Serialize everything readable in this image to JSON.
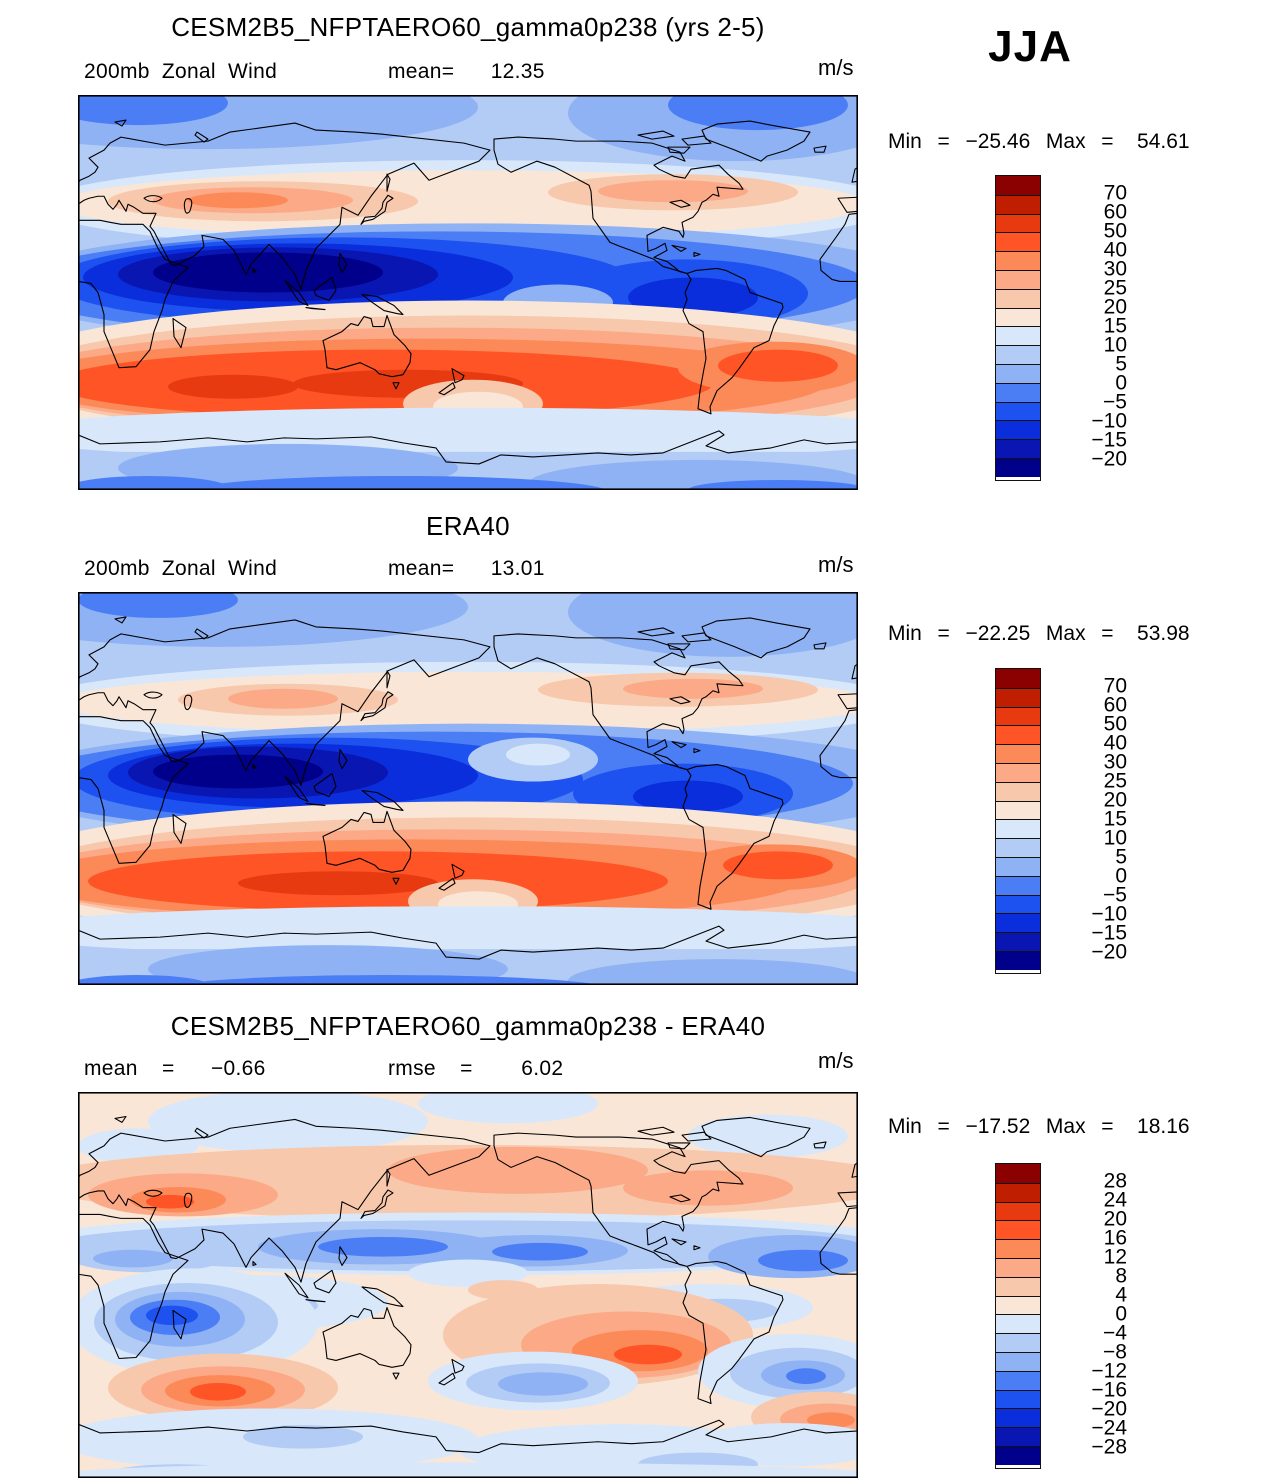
{
  "header": {
    "season": "JJA"
  },
  "palette": [
    "#8B0000",
    "#C01E00",
    "#E83A10",
    "#FF5426",
    "#FC8A58",
    "#FCA987",
    "#F8C8AC",
    "#FAE6D7",
    "#D8E8FA",
    "#B2CCF6",
    "#8FB2F4",
    "#4B7EF5",
    "#1E52F0",
    "#0A2EDC",
    "#0A16B2",
    "#00008B"
  ],
  "panels": [
    {
      "title": "CESM2B5_NFPTAERO60_gamma0p238 (yrs 2-5)",
      "left_label": "200mb Zonal Wind",
      "stat_label": "mean=   12.35",
      "units": "m/s",
      "minmax": "Min  =  −25.46  Max  =   54.61",
      "colorbar_ticks": [
        "70",
        "60",
        "50",
        "40",
        "30",
        "25",
        "20",
        "15",
        "10",
        "5",
        "0",
        "−5",
        "−10",
        "−15",
        "−20"
      ]
    },
    {
      "title": "ERA40",
      "left_label": "200mb Zonal Wind",
      "stat_label": "mean=   13.01",
      "units": "m/s",
      "minmax": "Min  =  −22.25  Max  =   53.98",
      "colorbar_ticks": [
        "70",
        "60",
        "50",
        "40",
        "30",
        "25",
        "20",
        "15",
        "10",
        "5",
        "0",
        "−5",
        "−10",
        "−15",
        "−20"
      ]
    },
    {
      "title": "CESM2B5_NFPTAERO60_gamma0p238 - ERA40",
      "left_label": "mean  =   −0.66",
      "stat_label": "rmse  =    6.02",
      "units": "m/s",
      "minmax": "Min  =  −17.52  Max  =   18.16",
      "colorbar_ticks": [
        "28",
        "24",
        "20",
        "16",
        "12",
        "8",
        "4",
        "0",
        "−4",
        "−8",
        "−12",
        "−16",
        "−20",
        "−24",
        "−28"
      ]
    }
  ],
  "chart_data": [
    {
      "type": "heatmap",
      "title": "CESM2B5_NFPTAERO60_gamma0p238 (yrs 2-5)",
      "variable": "200mb Zonal Wind",
      "season": "JJA",
      "units": "m/s",
      "mean": 12.35,
      "min": -25.46,
      "max": 54.61,
      "levels": [
        -20,
        -15,
        -10,
        -5,
        0,
        5,
        10,
        15,
        20,
        25,
        30,
        40,
        50,
        60,
        70
      ],
      "projection": "global cylindrical equidistant, lon 0-360E (Greenwich at left edge), lat 90N-90S",
      "legend_position": "right vertical colorbar, dark red (high) to navy (low)",
      "features": [
        "easterly jet core below -20 m/s over Indian Ocean / South Asia (0-20N, 40-110E)",
        "northern-hemisphere westerly band 15-40 m/s near 35-50N with maxima over central Asia and Canada",
        "southern-hemisphere winter jet 40-55 m/s along 25-40S, strongest 40-150E (Indian Ocean to Australia)",
        "weak westerlies 0-10 m/s over Arctic and Antarctic margins"
      ]
    },
    {
      "type": "heatmap",
      "title": "ERA40",
      "variable": "200mb Zonal Wind",
      "season": "JJA",
      "units": "m/s",
      "mean": 13.01,
      "min": -22.25,
      "max": 53.98,
      "levels": [
        -20,
        -15,
        -10,
        -5,
        0,
        5,
        10,
        15,
        20,
        25,
        30,
        40,
        50,
        60,
        70
      ],
      "projection": "global cylindrical equidistant, lon 0-360E (Greenwich at left edge), lat 90N-90S",
      "legend_position": "right vertical colorbar, dark red (high) to navy (low)",
      "features": [
        "easterly jet core below -20 m/s over Arabian Sea / India (5-20N, 50-90E)",
        "northern-hemisphere westerly maxima 25-30 m/s over central Asia and North Atlantic / eastern North America",
        "southern-hemisphere winter jet 40-50 m/s along 25-40S strongest over Indian Ocean and Australia",
        "light pale wedge 5-15 m/s in eastern equatorial Pacific"
      ]
    },
    {
      "type": "heatmap",
      "title": "CESM2B5_NFPTAERO60_gamma0p238 - ERA40",
      "variable": "200mb Zonal Wind difference",
      "season": "JJA",
      "units": "m/s",
      "mean": -0.66,
      "rmse": 6.02,
      "min": -17.52,
      "max": 18.16,
      "levels": [
        -28,
        -24,
        -20,
        -16,
        -12,
        -8,
        -4,
        0,
        4,
        8,
        12,
        16,
        20,
        24,
        28
      ],
      "projection": "global cylindrical equidistant, lon 0-360E (Greenwich at left edge), lat 90N-90S",
      "legend_position": "right vertical colorbar, dark red (positive) to navy (negative)",
      "features": [
        "positive band +4 to +16 m/s along 50-65N, strongest near Black Sea / eastern Europe",
        "negative band -4 to -12 m/s along 25-40N over east Asia, mid-Pacific and subtropical Atlantic",
        "positive anomaly +8 to +18 m/s in central tropical/south Pacific",
        "negative anomaly to -16 m/s over southern Africa with +12 m/s anomaly just south of the Cape",
        "weak negative band near 45-55S, near-zero elsewhere"
      ]
    }
  ]
}
